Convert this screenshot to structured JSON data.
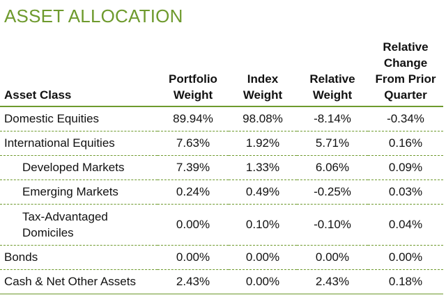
{
  "title": "ASSET ALLOCATION",
  "columns": {
    "asset_class": "Asset Class",
    "portfolio_weight": [
      "Portfolio",
      "Weight"
    ],
    "index_weight": [
      "Index",
      "Weight"
    ],
    "relative_weight": [
      "Relative",
      "Weight"
    ],
    "relative_change": [
      "Relative",
      "Change",
      "From Prior",
      "Quarter"
    ]
  },
  "rows": [
    {
      "label": "Domestic Equities",
      "portfolio": "89.94%",
      "index": "98.08%",
      "relative": "-8.14%",
      "change": "-0.34%"
    },
    {
      "label": "International Equities",
      "portfolio": "7.63%",
      "index": "1.92%",
      "relative": "5.71%",
      "change": "0.16%"
    },
    {
      "label": "Developed Markets",
      "portfolio": "7.39%",
      "index": "1.33%",
      "relative": "6.06%",
      "change": "0.09%"
    },
    {
      "label": "Emerging Markets",
      "portfolio": "0.24%",
      "index": "0.49%",
      "relative": "-0.25%",
      "change": "0.03%"
    },
    {
      "label": [
        "Tax-Advantaged",
        "Domiciles"
      ],
      "portfolio": "0.00%",
      "index": "0.10%",
      "relative": "-0.10%",
      "change": "0.04%"
    },
    {
      "label": "Bonds",
      "portfolio": "0.00%",
      "index": "0.00%",
      "relative": "0.00%",
      "change": "0.00%"
    },
    {
      "label": "Cash & Net Other Assets",
      "portfolio": "2.43%",
      "index": "0.00%",
      "relative": "2.43%",
      "change": "0.18%"
    }
  ],
  "colors": {
    "accent": "#6e9a2d",
    "text": "#111111"
  }
}
